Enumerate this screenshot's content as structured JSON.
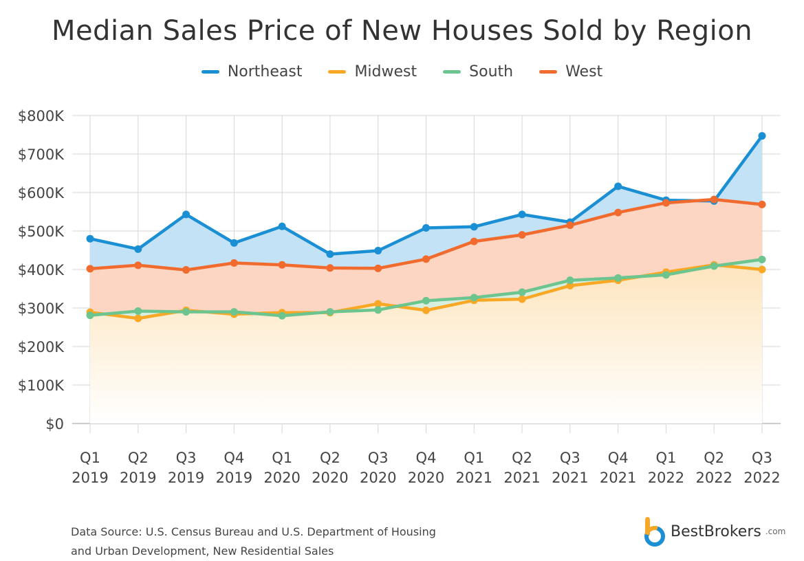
{
  "chart_data": {
    "type": "line",
    "title": "Median Sales Price of New Houses Sold by Region",
    "categories": [
      [
        "Q1",
        "2019"
      ],
      [
        "Q2",
        "2019"
      ],
      [
        "Q3",
        "2019"
      ],
      [
        "Q4",
        "2019"
      ],
      [
        "Q1",
        "2020"
      ],
      [
        "Q2",
        "2020"
      ],
      [
        "Q3",
        "2020"
      ],
      [
        "Q4",
        "2020"
      ],
      [
        "Q1",
        "2021"
      ],
      [
        "Q2",
        "2021"
      ],
      [
        "Q3",
        "2021"
      ],
      [
        "Q4",
        "2021"
      ],
      [
        "Q1",
        "2022"
      ],
      [
        "Q2",
        "2022"
      ],
      [
        "Q3",
        "2022"
      ]
    ],
    "ylim": [
      0,
      800000
    ],
    "yticks": [
      {
        "value": 0,
        "label": "$0"
      },
      {
        "value": 100000,
        "label": "$100K"
      },
      {
        "value": 200000,
        "label": "$200K"
      },
      {
        "value": 300000,
        "label": "$300K"
      },
      {
        "value": 400000,
        "label": "$400K"
      },
      {
        "value": 500000,
        "label": "$500K"
      },
      {
        "value": 600000,
        "label": "$600K"
      },
      {
        "value": 700000,
        "label": "$700K"
      },
      {
        "value": 800000,
        "label": "$800K"
      }
    ],
    "grid": true,
    "legend_position": "top-center",
    "series": [
      {
        "name": "Northeast",
        "color": "#1a8fd4",
        "fill": "#c4e2f5",
        "values": [
          480000,
          453000,
          543000,
          469000,
          512000,
          440000,
          449000,
          508000,
          511000,
          543000,
          523000,
          616000,
          580000,
          578000,
          747000
        ]
      },
      {
        "name": "Midwest",
        "color": "#f9a826",
        "fill": "#fde5bd",
        "values": [
          289000,
          273000,
          294000,
          284000,
          288000,
          288000,
          311000,
          294000,
          320000,
          323000,
          358000,
          372000,
          393000,
          412000,
          400000
        ]
      },
      {
        "name": "South",
        "color": "#6cc48f",
        "fill": "#d8efe0",
        "values": [
          281000,
          292000,
          290000,
          290000,
          280000,
          290000,
          295000,
          319000,
          327000,
          341000,
          372000,
          378000,
          386000,
          409000,
          426000
        ]
      },
      {
        "name": "West",
        "color": "#f26b2e",
        "fill": "#fdd5c3",
        "values": [
          402000,
          411000,
          399000,
          417000,
          412000,
          404000,
          403000,
          427000,
          473000,
          490000,
          515000,
          548000,
          573000,
          582000,
          569000
        ]
      }
    ]
  },
  "footer": {
    "source_line1": "Data Source: U.S. Census Bureau and U.S. Department of Housing",
    "source_line2": "and Urban Development, New Residential Sales",
    "brand_name": "BestBrokers",
    "brand_tld": ".com"
  }
}
